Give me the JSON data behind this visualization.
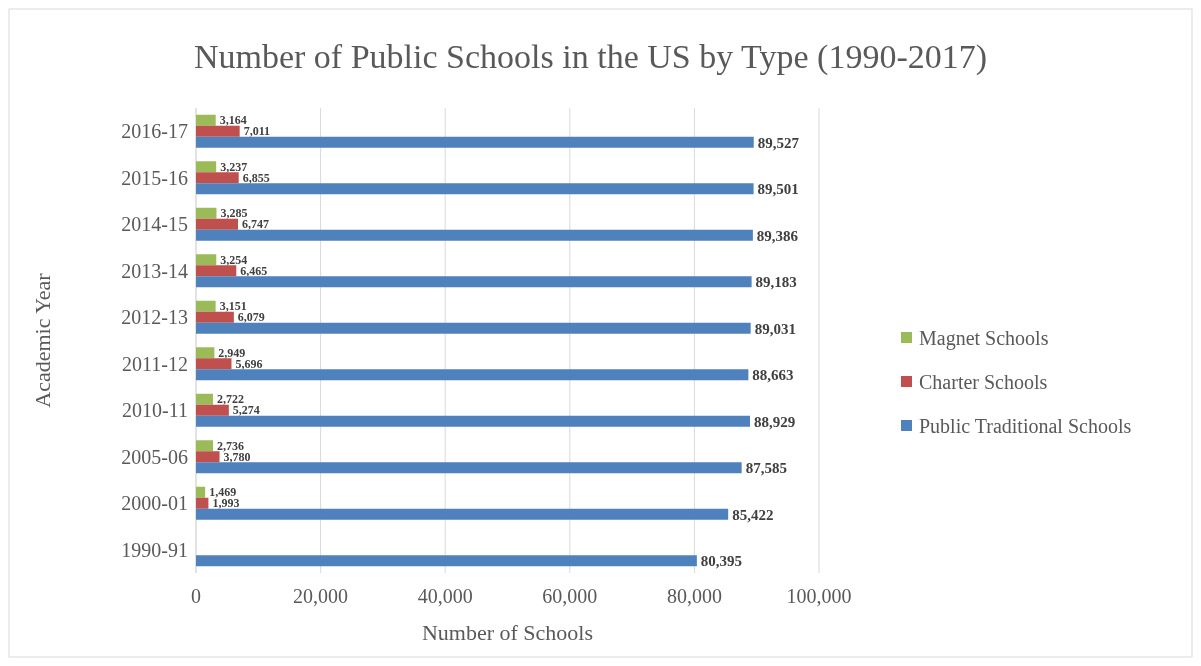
{
  "chart_data": {
    "type": "bar",
    "orientation": "horizontal",
    "title": "Number of Public Schools in the US by Type (1990-2017)",
    "xlabel": "Number of Schools",
    "ylabel": "Academic Year",
    "categories": [
      "2016-17",
      "2015-16",
      "2014-15",
      "2013-14",
      "2012-13",
      "2011-12",
      "2010-11",
      "2005-06",
      "2000-01",
      "1990-91"
    ],
    "series": [
      {
        "name": "Magnet Schools",
        "color": "#9bbb59",
        "values": [
          3164,
          3237,
          3285,
          3254,
          3151,
          2949,
          2722,
          2736,
          1469,
          null
        ],
        "value_labels": [
          "3,164",
          "3,237",
          "3,285",
          "3,254",
          "3,151",
          "2,949",
          "2,722",
          "2,736",
          "1,469",
          null
        ]
      },
      {
        "name": "Charter Schools",
        "color": "#c0504d",
        "values": [
          7011,
          6855,
          6747,
          6465,
          6079,
          5696,
          5274,
          3780,
          1993,
          null
        ],
        "value_labels": [
          "7,011",
          "6,855",
          "6,747",
          "6,465",
          "6,079",
          "5,696",
          "5,274",
          "3,780",
          "1,993",
          null
        ]
      },
      {
        "name": "Public Traditional Schools",
        "color": "#4f81bd",
        "values": [
          89527,
          89501,
          89386,
          89183,
          89031,
          88663,
          88929,
          87585,
          85422,
          80395
        ],
        "value_labels": [
          "89,527",
          "89,501",
          "89,386",
          "89,183",
          "89,031",
          "88,663",
          "88,929",
          "87,585",
          "85,422",
          "80,395"
        ]
      }
    ],
    "xlim": [
      0,
      100000
    ],
    "xticks": [
      {
        "value": 0,
        "label": "0"
      },
      {
        "value": 20000,
        "label": "20,000"
      },
      {
        "value": 40000,
        "label": "40,000"
      },
      {
        "value": 60000,
        "label": "60,000"
      },
      {
        "value": 80000,
        "label": "80,000"
      },
      {
        "value": 100000,
        "label": "100,000"
      }
    ],
    "grid": "x",
    "legend": "right"
  }
}
